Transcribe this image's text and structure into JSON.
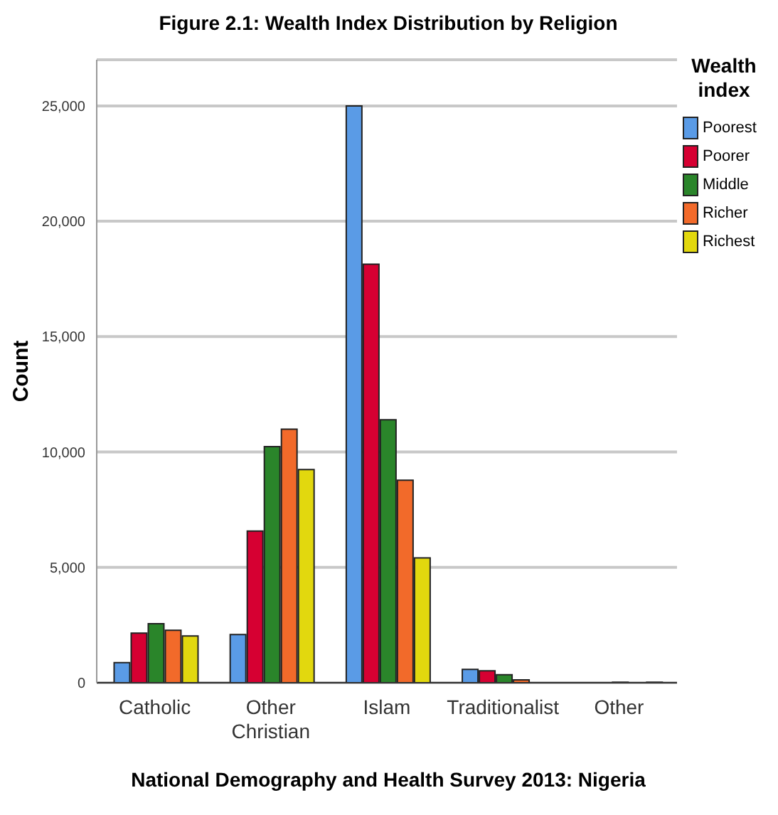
{
  "chart_data": {
    "type": "bar",
    "title": "Figure 2.1: Wealth Index Distribution by Religion",
    "xlabel": "National Demography and Health Survey 2013: Nigeria",
    "ylabel": "Count",
    "legend_title": "Wealth\nindex",
    "categories": [
      "Catholic",
      "Other\nChristian",
      "Islam",
      "Traditionalist",
      "Other"
    ],
    "series": [
      {
        "name": "Poorest",
        "color": "#5a9be6",
        "values": [
          870,
          2090,
          25000,
          580,
          null
        ]
      },
      {
        "name": "Poorer",
        "color": "#d60032",
        "values": [
          2150,
          6570,
          18140,
          520,
          null
        ]
      },
      {
        "name": "Middle",
        "color": "#2a852a",
        "values": [
          2560,
          10230,
          11400,
          350,
          20
        ]
      },
      {
        "name": "Richer",
        "color": "#f26a2a",
        "values": [
          2270,
          10990,
          8780,
          120,
          null
        ]
      },
      {
        "name": "Richest",
        "color": "#e2d80e",
        "values": [
          2030,
          9240,
          5410,
          null,
          20
        ]
      }
    ],
    "ylim": [
      0,
      27000
    ],
    "yticks": [
      0,
      {
        "value": 5000,
        "label": "5,000"
      },
      {
        "value": 10000,
        "label": "10,000"
      },
      {
        "value": 15000,
        "label": "15,000"
      },
      {
        "value": 20000,
        "label": "20,000"
      },
      {
        "value": 25000,
        "label": "25,000"
      }
    ],
    "grid": "y",
    "legend": "top right"
  }
}
